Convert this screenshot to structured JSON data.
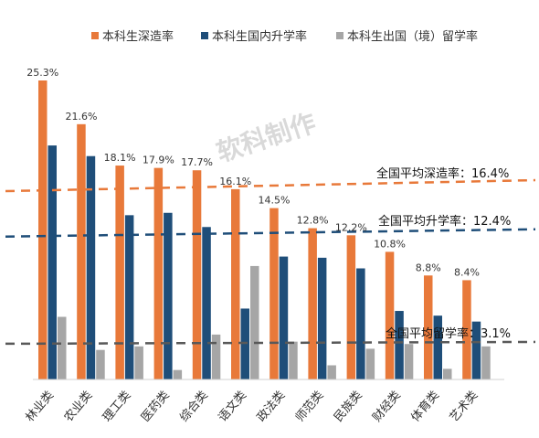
{
  "chart_data": {
    "type": "bar",
    "categories": [
      "林业类",
      "农业类",
      "理工类",
      "医药类",
      "综合类",
      "语文类",
      "政法类",
      "师范类",
      "民族类",
      "财经类",
      "体育类",
      "艺术类"
    ],
    "series": [
      {
        "name": "本科生深造率",
        "color": "#E8793A",
        "values": [
          25.3,
          21.6,
          18.1,
          17.9,
          17.7,
          16.1,
          14.5,
          12.8,
          12.2,
          10.8,
          8.8,
          8.4
        ]
      },
      {
        "name": "本科生国内升学率",
        "color": "#1F4E79",
        "values": [
          19.8,
          18.9,
          13.9,
          14.1,
          12.9,
          6.0,
          10.4,
          10.3,
          9.4,
          5.8,
          5.4,
          4.9
        ]
      },
      {
        "name": "本科生出国（境）留学率",
        "color": "#A6A6A6",
        "values": [
          5.3,
          2.5,
          2.8,
          0.8,
          3.8,
          9.6,
          3.2,
          1.2,
          2.6,
          3.0,
          0.9,
          2.8
        ]
      }
    ],
    "value_labels": [
      "25.3%",
      "21.6%",
      "18.1%",
      "17.9%",
      "17.7%",
      "16.1%",
      "14.5%",
      "12.8%",
      "12.2%",
      "10.8%",
      "8.8%",
      "8.4%"
    ],
    "reference_lines": [
      {
        "label": "全国平均深造率：16.4%",
        "value": 16.4,
        "color": "#E8793A"
      },
      {
        "label": "全国平均升学率：12.4%",
        "value": 12.4,
        "color": "#1F4E79"
      },
      {
        "label": "全国平均留学率：3.1%",
        "value": 3.1,
        "color": "#595959"
      }
    ],
    "ylim": [
      0,
      25.3
    ],
    "grid": false,
    "legend_position": "top"
  },
  "watermark": "软科制作"
}
